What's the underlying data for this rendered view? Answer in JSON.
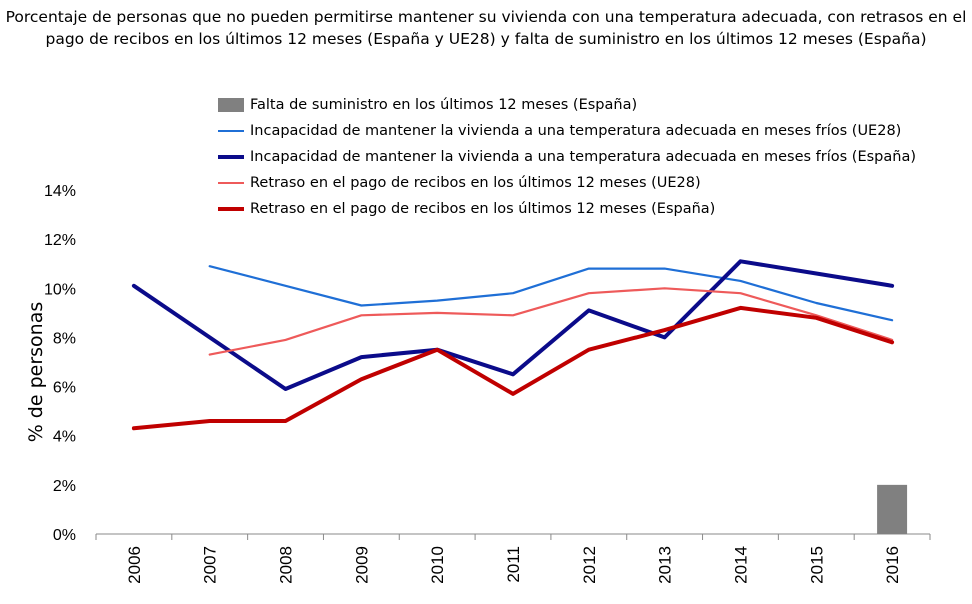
{
  "title_lines": [
    "Porcentaje de personas que no pueden permitirse mantener su vivienda con una temperatura adecuada, con retrasos en el",
    "pago de recibos en los últimos 12 meses (España y UE28) y falta de suministro en los últimos 12 meses (España)"
  ],
  "chart_data": {
    "type": "line",
    "title": "Porcentaje de personas que no pueden permitirse mantener su vivienda con una temperatura adecuada, con retrasos en el pago de recibos en los últimos 12 meses (España y UE28) y falta de suministro en los últimos 12 meses (España)",
    "xlabel": "",
    "ylabel": "% de personas",
    "ylim": [
      0,
      14
    ],
    "yticks": [
      "0%",
      "2%",
      "4%",
      "6%",
      "8%",
      "10%",
      "12%",
      "14%"
    ],
    "categories": [
      "2006",
      "2007",
      "2008",
      "2009",
      "2010",
      "2011",
      "2012",
      "2013",
      "2014",
      "2015",
      "2016"
    ],
    "legend_position": "top",
    "grid": false,
    "series": [
      {
        "name": "Falta de suministro en los últimos 12 meses (España)",
        "kind": "bar",
        "color": "#808080",
        "values": [
          null,
          null,
          null,
          null,
          null,
          null,
          null,
          null,
          null,
          null,
          2.0
        ]
      },
      {
        "name": "Incapacidad de mantener la vivienda a una temperatura adecuada en meses fríos (UE28)",
        "kind": "line",
        "color": "#1f6fd6",
        "width": 2.2,
        "values": [
          null,
          10.9,
          10.1,
          9.3,
          9.5,
          9.8,
          10.8,
          10.8,
          10.3,
          9.4,
          8.7
        ]
      },
      {
        "name": "Incapacidad de mantener la vivienda a una temperatura adecuada en meses fríos (España)",
        "kind": "line",
        "color": "#0b0b8a",
        "width": 4,
        "values": [
          10.1,
          8.0,
          5.9,
          7.2,
          7.5,
          6.5,
          9.1,
          8.0,
          11.1,
          10.6,
          10.1
        ]
      },
      {
        "name": "Retraso en el pago de recibos en los últimos 12 meses (UE28)",
        "kind": "line",
        "color": "#ee5a5a",
        "width": 2.2,
        "values": [
          null,
          7.3,
          7.9,
          8.9,
          9.0,
          8.9,
          9.8,
          10.0,
          9.8,
          8.9,
          7.9
        ]
      },
      {
        "name": "Retraso en el pago de recibos en los últimos 12 meses (España)",
        "kind": "line",
        "color": "#c00000",
        "width": 4,
        "values": [
          4.3,
          4.6,
          4.6,
          6.3,
          7.5,
          5.7,
          7.5,
          8.3,
          9.2,
          8.8,
          7.8
        ]
      }
    ]
  }
}
